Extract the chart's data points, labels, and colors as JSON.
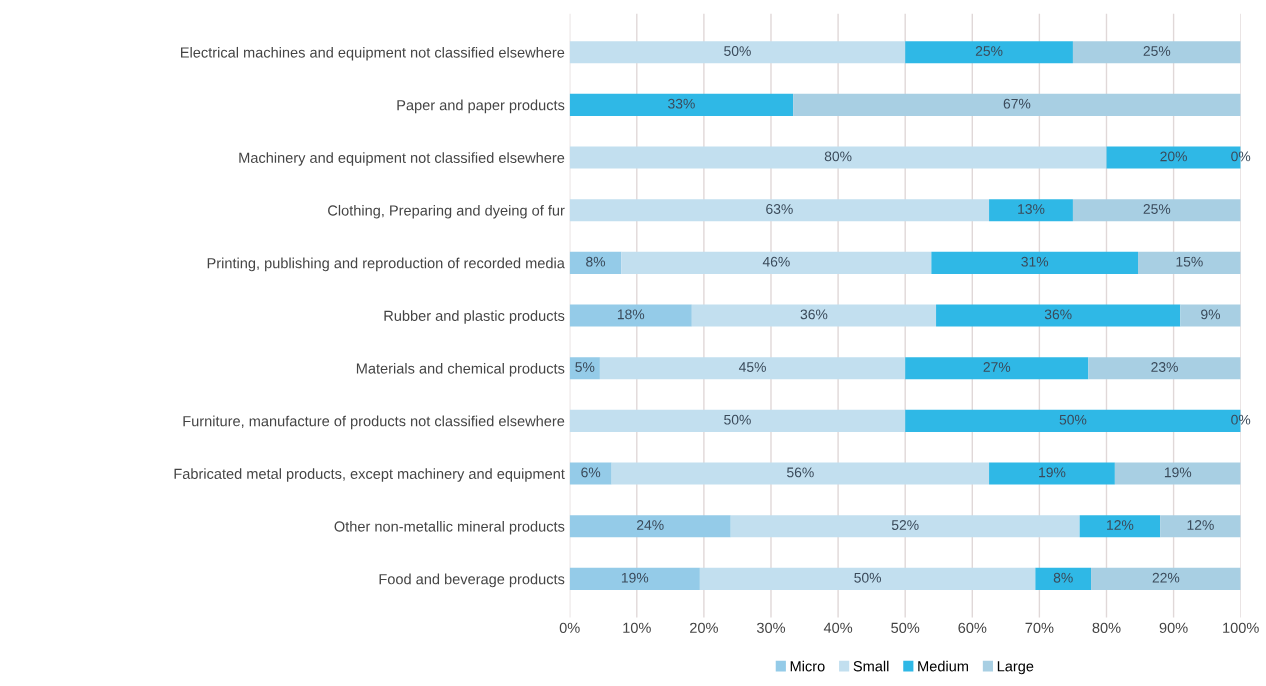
{
  "chart_data": {
    "type": "bar",
    "orientation": "horizontal",
    "stacked": true,
    "categories": [
      "Electrical machines and equipment not classified elsewhere",
      "Paper and paper products",
      "Machinery and equipment not classified elsewhere",
      "Clothing, Preparing and dyeing of fur",
      "Printing, publishing and reproduction of recorded media",
      "Rubber and plastic products",
      "Materials and chemical products",
      "Furniture, manufacture of products not classified elsewhere",
      "Fabricated metal products, except machinery and equipment",
      "Other non-metallic mineral products",
      "Food and beverage products"
    ],
    "series": [
      {
        "name": "Micro",
        "color": "#94cbe8",
        "values": [
          0,
          0,
          0,
          0,
          7.7,
          18.2,
          4.5,
          0,
          6.25,
          24,
          19.4
        ],
        "value_labels": [
          null,
          null,
          null,
          null,
          "8%",
          "18%",
          "5%",
          null,
          "6%",
          "24%",
          "19%"
        ]
      },
      {
        "name": "Small",
        "color": "#c2dfef",
        "values": [
          50,
          0,
          80,
          62.5,
          46.2,
          36.4,
          45.5,
          50,
          56.25,
          52,
          50
        ],
        "value_labels": [
          "50%",
          null,
          "80%",
          "63%",
          "46%",
          "36%",
          "45%",
          "50%",
          "56%",
          "52%",
          "50%"
        ]
      },
      {
        "name": "Medium",
        "color": "#2fb8e6",
        "values": [
          25,
          33.3,
          20,
          12.5,
          30.8,
          36.4,
          27.3,
          50,
          18.75,
          12,
          8.3
        ],
        "value_labels": [
          "25%",
          "33%",
          "20%",
          "13%",
          "31%",
          "36%",
          "27%",
          "50%",
          "19%",
          "12%",
          "8%"
        ]
      },
      {
        "name": "Large",
        "color": "#a8cfe3",
        "values": [
          25,
          66.7,
          0,
          25,
          15.3,
          9.0,
          22.7,
          0,
          18.75,
          12,
          22.3
        ],
        "value_labels": [
          "25%",
          "67%",
          "0%",
          "25%",
          "15%",
          "9%",
          "23%",
          "0%",
          "19%",
          "12%",
          "22%"
        ]
      }
    ],
    "xlim": [
      0,
      100
    ],
    "xticks": [
      {
        "value": 0,
        "label": "0%"
      },
      {
        "value": 10,
        "label": "10%"
      },
      {
        "value": 20,
        "label": "20%"
      },
      {
        "value": 30,
        "label": "30%"
      },
      {
        "value": 40,
        "label": "40%"
      },
      {
        "value": 50,
        "label": "50%"
      },
      {
        "value": 60,
        "label": "60%"
      },
      {
        "value": 70,
        "label": "70%"
      },
      {
        "value": 80,
        "label": "80%"
      },
      {
        "value": 90,
        "label": "90%"
      },
      {
        "value": 100,
        "label": "100%"
      }
    ],
    "grid": "x",
    "legend": "bottom"
  }
}
